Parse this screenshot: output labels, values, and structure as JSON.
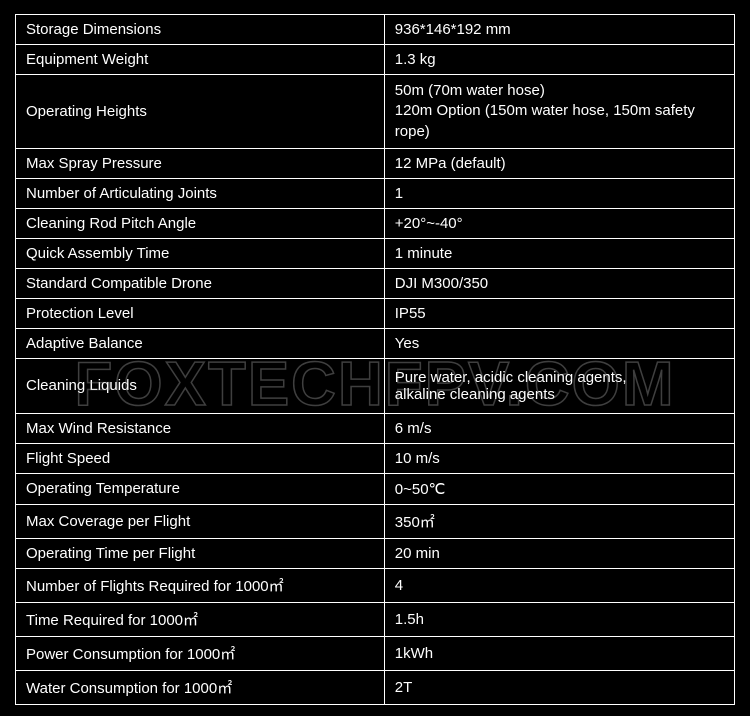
{
  "watermark_text": "FOXTECHFPV.COM",
  "table": {
    "type": "table",
    "background_color": "#000000",
    "border_color": "#ffffff",
    "text_color": "#ffffff",
    "label_fontsize": 15,
    "value_fontsize": 15,
    "small_fontsize": 11.5,
    "rows": [
      {
        "label": "Storage Dimensions",
        "value": "936*146*192 mm"
      },
      {
        "label": "Equipment Weight",
        "value": "1.3 kg"
      },
      {
        "label": "Operating Heights",
        "value": "50m (70m water hose)\n120m Option (150m water hose, 150m safety rope)",
        "small": true
      },
      {
        "label": "Max Spray Pressure",
        "value": "12 MPa (default)"
      },
      {
        "label": "Number of Articulating Joints",
        "value": "1"
      },
      {
        "label": "Cleaning Rod Pitch Angle",
        "value": "+20°~-40°"
      },
      {
        "label": "Quick Assembly Time",
        "value": "1 minute"
      },
      {
        "label": "Standard Compatible Drone",
        "value": "DJI M300/350"
      },
      {
        "label": "Protection Level",
        "value": "IP55"
      },
      {
        "label": "Adaptive Balance",
        "value": "Yes"
      },
      {
        "label": "Cleaning Liquids",
        "value": "Pure water, acidic cleaning agents,\n alkaline cleaning agents",
        "tall": true
      },
      {
        "label": "Max Wind Resistance",
        "value": "6 m/s"
      },
      {
        "label": "Flight Speed",
        "value": "10 m/s"
      },
      {
        "label": "Operating Temperature",
        "value": "0~50℃"
      },
      {
        "label": "Max Coverage per Flight",
        "value": "350㎡"
      },
      {
        "label": "Operating Time per Flight",
        "value": "20 min"
      },
      {
        "label": "Number of Flights Required for 1000㎡",
        "value": "4"
      },
      {
        "label": "Time Required for 1000㎡",
        "value": "1.5h"
      },
      {
        "label": "Power Consumption for 1000㎡",
        "value": "1kWh"
      },
      {
        "label": "Water Consumption for 1000㎡",
        "value": "2T"
      }
    ]
  }
}
